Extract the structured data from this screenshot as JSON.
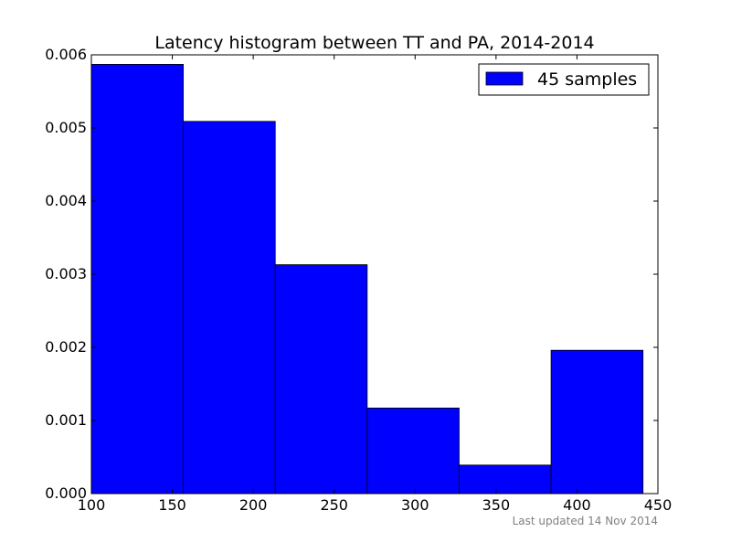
{
  "chart_data": {
    "type": "bar",
    "title": "Latency histogram between TT and PA, 2014-2014",
    "xlabel": "",
    "ylabel": "",
    "bins": [
      {
        "x0": 100,
        "x1": 156.8,
        "density": 0.00587
      },
      {
        "x0": 156.8,
        "x1": 213.6,
        "density": 0.00509
      },
      {
        "x0": 213.6,
        "x1": 270.4,
        "density": 0.00313
      },
      {
        "x0": 270.4,
        "x1": 327.2,
        "density": 0.00117
      },
      {
        "x0": 327.2,
        "x1": 384.0,
        "density": 0.00039
      },
      {
        "x0": 384.0,
        "x1": 440.8,
        "density": 0.00196
      }
    ],
    "xlim": [
      100,
      450
    ],
    "ylim": [
      0,
      0.006
    ],
    "xticks": [
      100,
      150,
      200,
      250,
      300,
      350,
      400,
      450
    ],
    "xtick_labels": [
      "100",
      "150",
      "200",
      "250",
      "300",
      "350",
      "400",
      "450"
    ],
    "yticks": [
      0,
      0.001,
      0.002,
      0.003,
      0.004,
      0.005,
      0.006
    ],
    "ytick_labels": [
      "0.000",
      "0.001",
      "0.002",
      "0.003",
      "0.004",
      "0.005",
      "0.006"
    ],
    "legend": {
      "label": "45 samples",
      "position": "top-right"
    },
    "grid": false,
    "bar_color": "#0000ff",
    "edge_color": "#000000"
  },
  "footer": {
    "text": "Last updated 14 Nov 2014"
  }
}
